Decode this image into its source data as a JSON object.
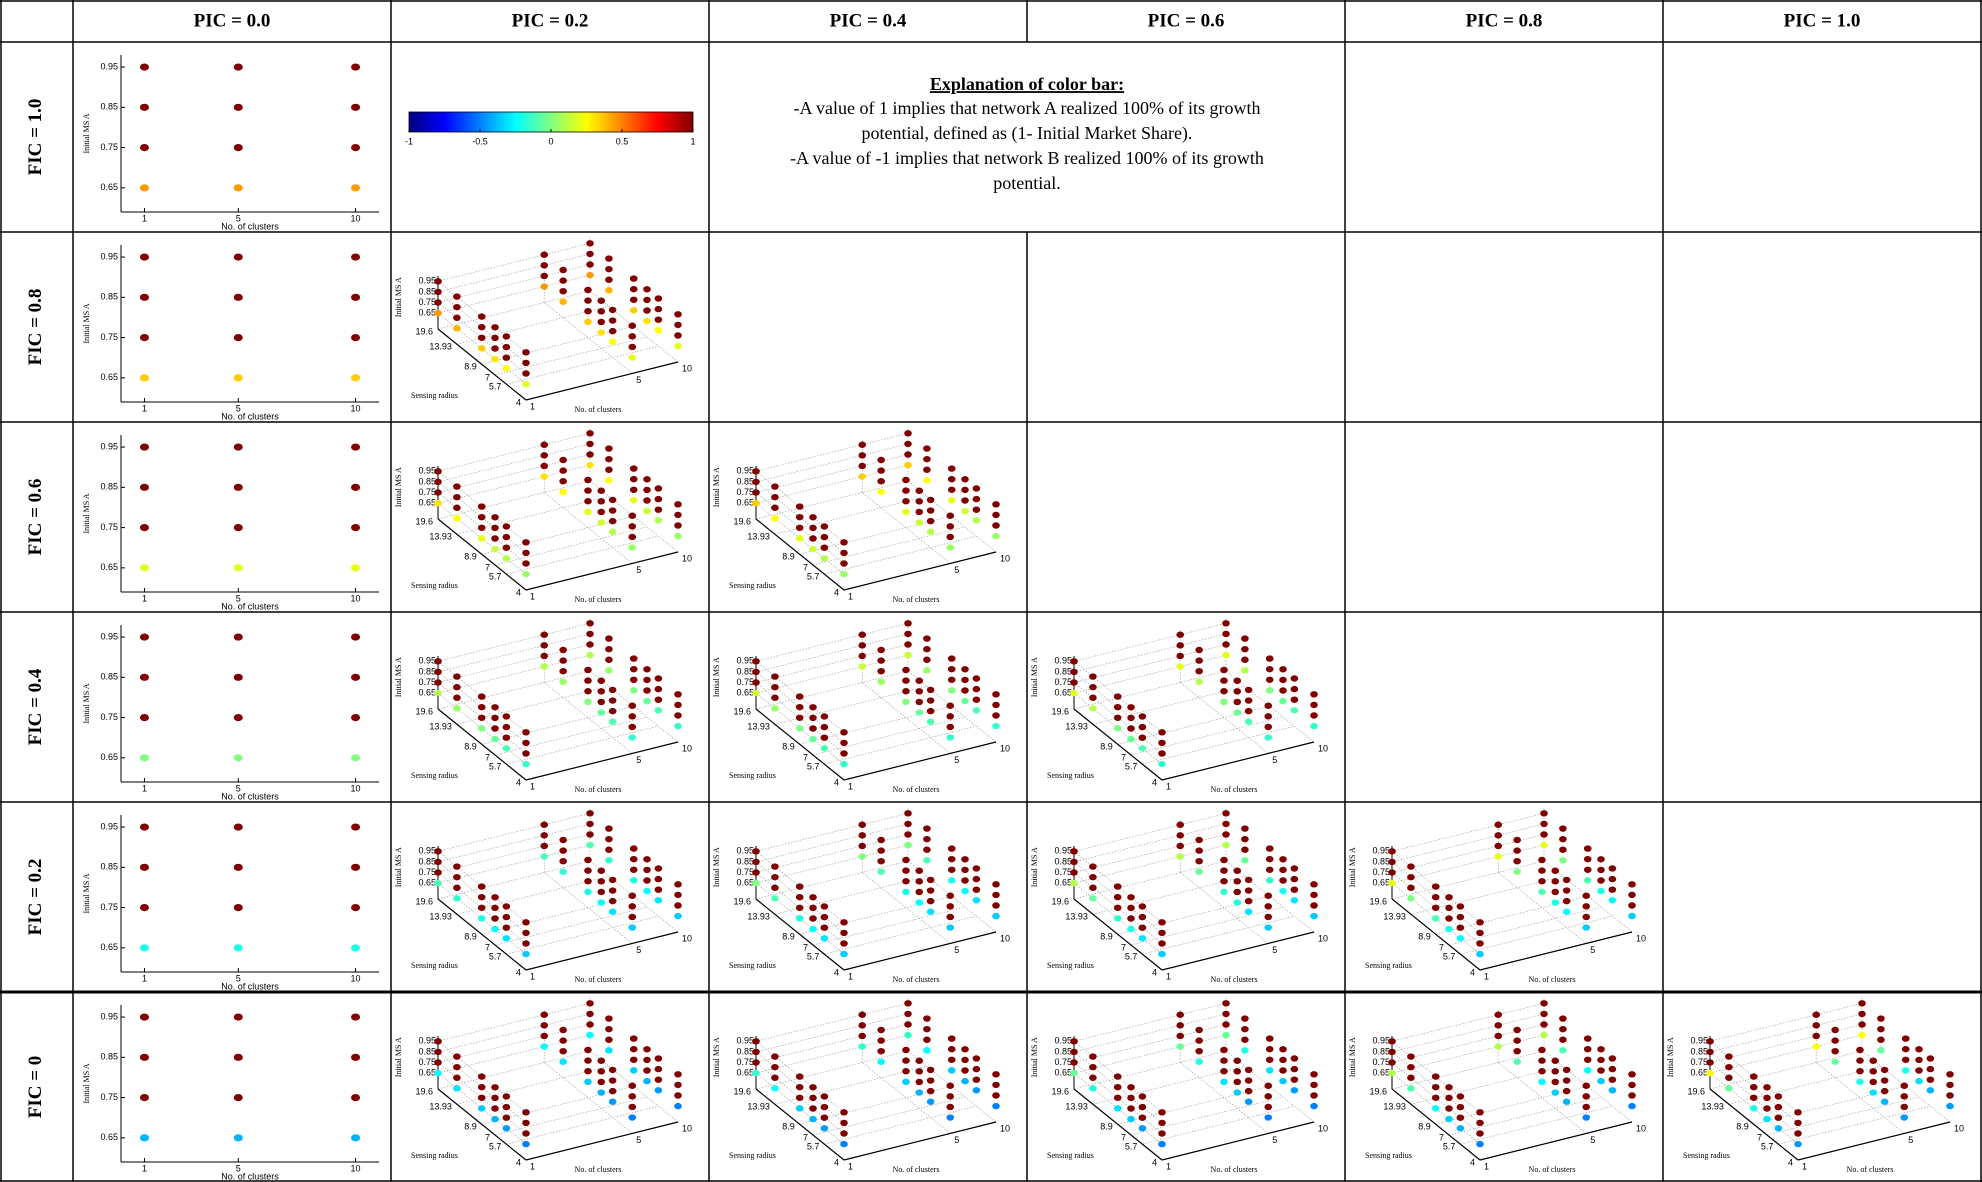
{
  "columns": [
    "PIC = 0.0",
    "PIC = 0.2",
    "PIC = 0.4",
    "PIC = 0.6",
    "PIC = 0.8",
    "PIC = 1.0"
  ],
  "legend": {
    "clim": [
      -1,
      1
    ],
    "ticks": [
      -1,
      -0.5,
      0,
      0.5,
      1
    ],
    "title": "Explanation of color bar:",
    "lines": [
      "-A value of 1 implies that network A realized 100% of its growth",
      "potential, defined as (1- Initial Market Share).",
      "-A value of -1 implies that network B realized 100% of its growth",
      "potential."
    ]
  },
  "axes2d": {
    "xlabel": "No. of clusters",
    "ylabel": "Initial MS A",
    "xlim": [
      0,
      11
    ],
    "ylim": [
      0.59,
      0.98
    ],
    "xticks": [
      1,
      5,
      10
    ],
    "yticks": [
      0.65,
      0.75,
      0.85,
      0.95
    ]
  },
  "axes3d": {
    "xlabel": "No. of clusters",
    "ylabel": "Sensing radius",
    "zlabel": "Initial MS A",
    "xlim": [
      1,
      10
    ],
    "ylim": [
      4,
      19.6
    ],
    "zlim": [
      0.5,
      1
    ],
    "xlog": true,
    "ylog": true,
    "xticks": [
      1,
      5,
      10
    ],
    "yticks": [
      4,
      5.7,
      7,
      8.9,
      13.93,
      19.6
    ],
    "zticks": [
      0.65,
      0.75,
      0.85,
      0.95
    ]
  },
  "rows": [
    {
      "label": "FIC = 1.0",
      "plot2d": [
        [
          0.45,
          0.45,
          0.45
        ],
        [
          1,
          1,
          1
        ],
        [
          1,
          1,
          1
        ],
        [
          1,
          1,
          1
        ]
      ],
      "plots3d": []
    },
    {
      "label": "FIC = 0.8",
      "plot2d": [
        [
          0.35,
          0.35,
          0.35
        ],
        [
          1,
          1,
          1
        ],
        [
          1,
          1,
          1
        ],
        [
          1,
          1,
          1
        ]
      ],
      "plots3d": [
        [
          [
            0.2,
            0.25,
            0.3,
            0.35,
            0.4,
            0.45
          ],
          [
            1,
            1,
            1,
            1,
            1,
            1
          ],
          [
            1,
            1,
            1,
            1,
            1,
            1
          ],
          [
            1,
            1,
            1,
            1,
            1,
            1
          ]
        ]
      ]
    },
    {
      "label": "FIC = 0.6",
      "plot2d": [
        [
          0.2,
          0.2,
          0.2
        ],
        [
          1,
          1,
          1
        ],
        [
          1,
          1,
          1
        ],
        [
          1,
          1,
          1
        ]
      ],
      "plots3d": [
        [
          [
            0.05,
            0.1,
            0.15,
            0.2,
            0.25,
            0.3
          ],
          [
            1,
            1,
            1,
            1,
            1,
            1
          ],
          [
            1,
            1,
            1,
            1,
            1,
            1
          ],
          [
            1,
            1,
            1,
            1,
            1,
            1
          ]
        ],
        [
          [
            0.05,
            0.1,
            0.15,
            0.2,
            0.25,
            0.35
          ],
          [
            1,
            1,
            1,
            1,
            1,
            1
          ],
          [
            1,
            1,
            1,
            1,
            1,
            1
          ],
          [
            1,
            1,
            1,
            1,
            1,
            1
          ]
        ]
      ]
    },
    {
      "label": "FIC = 0.4",
      "plot2d": [
        [
          0,
          0,
          0
        ],
        [
          1,
          1,
          1
        ],
        [
          1,
          1,
          1
        ],
        [
          1,
          1,
          1
        ]
      ],
      "plots3d": [
        [
          [
            -0.15,
            -0.1,
            -0.05,
            0,
            0.05,
            0.1
          ],
          [
            1,
            1,
            1,
            1,
            1,
            1
          ],
          [
            1,
            1,
            1,
            1,
            1,
            1
          ],
          [
            1,
            1,
            1,
            1,
            1,
            1
          ]
        ],
        [
          [
            -0.15,
            -0.1,
            -0.05,
            0,
            0.05,
            0.15
          ],
          [
            1,
            1,
            1,
            1,
            1,
            1
          ],
          [
            1,
            1,
            1,
            1,
            1,
            1
          ],
          [
            1,
            1,
            1,
            1,
            1,
            1
          ]
        ],
        [
          [
            -0.15,
            -0.1,
            -0.05,
            0,
            0.1,
            0.2
          ],
          [
            1,
            1,
            1,
            1,
            1,
            1
          ],
          [
            1,
            1,
            1,
            1,
            1,
            1
          ],
          [
            1,
            1,
            1,
            1,
            1,
            1
          ]
        ]
      ]
    },
    {
      "label": "FIC = 0.2",
      "plot2d": [
        [
          -0.2,
          -0.2,
          -0.2
        ],
        [
          1,
          1,
          1
        ],
        [
          1,
          1,
          1
        ],
        [
          1,
          1,
          1
        ]
      ],
      "plots3d": [
        [
          [
            -0.35,
            -0.3,
            -0.25,
            -0.2,
            -0.15,
            -0.1
          ],
          [
            1,
            1,
            1,
            1,
            1,
            1
          ],
          [
            1,
            1,
            1,
            1,
            1,
            1
          ],
          [
            1,
            1,
            1,
            1,
            1,
            1
          ]
        ],
        [
          [
            -0.35,
            -0.3,
            -0.25,
            -0.2,
            -0.1,
            0
          ],
          [
            1,
            1,
            1,
            1,
            1,
            1
          ],
          [
            1,
            1,
            1,
            1,
            1,
            1
          ],
          [
            1,
            1,
            1,
            1,
            1,
            1
          ]
        ],
        [
          [
            -0.35,
            -0.3,
            -0.2,
            -0.15,
            -0.05,
            0.1
          ],
          [
            1,
            1,
            1,
            1,
            1,
            1
          ],
          [
            1,
            1,
            1,
            1,
            1,
            1
          ],
          [
            1,
            1,
            1,
            1,
            1,
            1
          ]
        ],
        [
          [
            -0.35,
            -0.25,
            -0.2,
            -0.1,
            0,
            0.2
          ],
          [
            1,
            1,
            1,
            1,
            1,
            1
          ],
          [
            1,
            1,
            1,
            1,
            1,
            1
          ],
          [
            1,
            1,
            1,
            1,
            1,
            1
          ]
        ]
      ]
    },
    {
      "label": "FIC = 0",
      "plot2d": [
        [
          -0.4,
          -0.4,
          -0.4
        ],
        [
          1,
          1,
          1
        ],
        [
          1,
          1,
          1
        ],
        [
          1,
          1,
          1
        ]
      ],
      "plots3d": [
        [
          [
            -0.5,
            -0.45,
            -0.4,
            -0.35,
            -0.3,
            -0.25
          ],
          [
            1,
            1,
            1,
            1,
            1,
            1
          ],
          [
            1,
            1,
            1,
            1,
            1,
            1
          ],
          [
            1,
            1,
            1,
            1,
            1,
            1
          ]
        ],
        [
          [
            -0.5,
            -0.45,
            -0.4,
            -0.35,
            -0.25,
            -0.15
          ],
          [
            1,
            1,
            1,
            1,
            1,
            1
          ],
          [
            1,
            1,
            1,
            1,
            1,
            1
          ],
          [
            1,
            1,
            1,
            1,
            1,
            1
          ]
        ],
        [
          [
            -0.5,
            -0.45,
            -0.35,
            -0.3,
            -0.2,
            -0.05
          ],
          [
            1,
            1,
            1,
            1,
            1,
            1
          ],
          [
            1,
            1,
            1,
            1,
            1,
            1
          ],
          [
            1,
            1,
            1,
            1,
            1,
            1
          ]
        ],
        [
          [
            -0.5,
            -0.4,
            -0.35,
            -0.25,
            -0.1,
            0.1
          ],
          [
            1,
            1,
            1,
            1,
            1,
            1
          ],
          [
            1,
            1,
            1,
            1,
            1,
            1
          ],
          [
            1,
            1,
            1,
            1,
            1,
            1
          ]
        ],
        [
          [
            -0.45,
            -0.4,
            -0.3,
            -0.2,
            -0.05,
            0.25
          ],
          [
            1,
            1,
            1,
            1,
            1,
            1
          ],
          [
            1,
            1,
            1,
            1,
            1,
            1
          ],
          [
            1,
            1,
            1,
            1,
            1,
            1
          ]
        ]
      ]
    }
  ]
}
